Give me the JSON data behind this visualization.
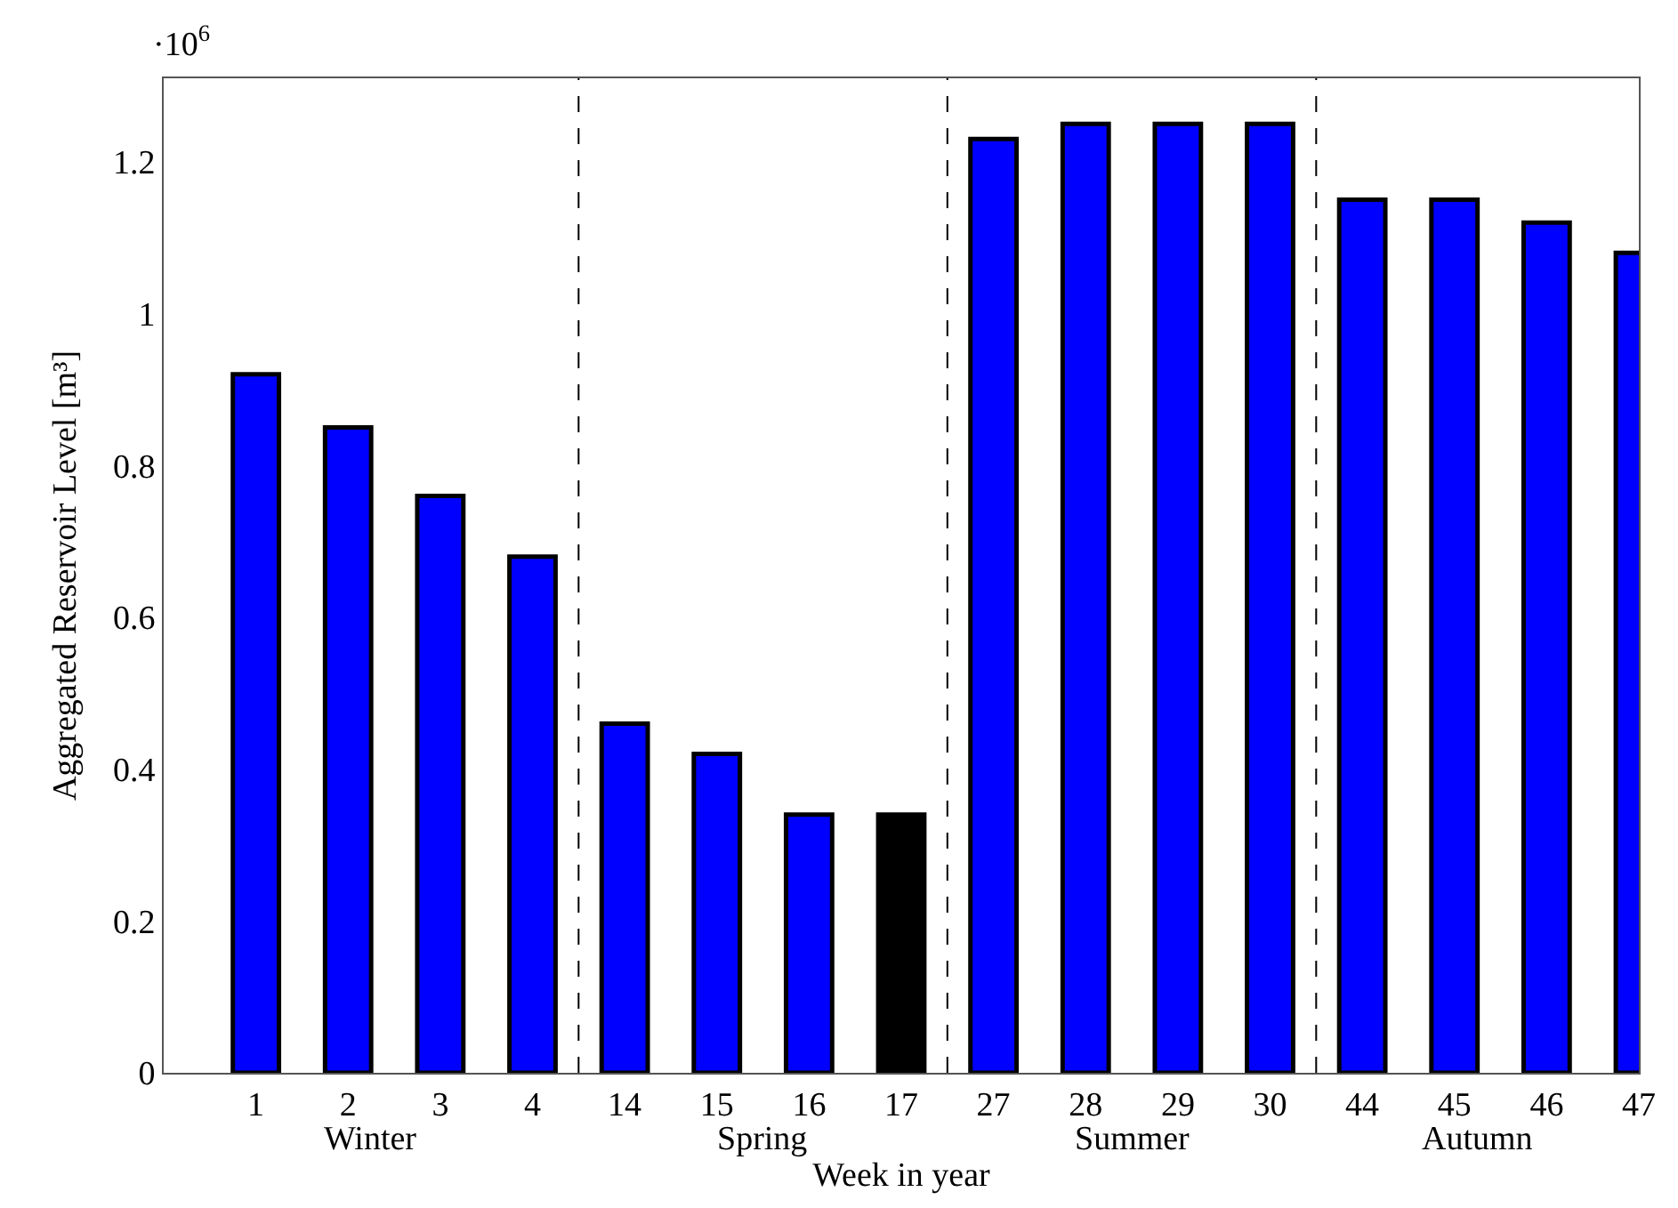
{
  "chart_data": {
    "type": "bar",
    "categories": [
      "1",
      "2",
      "3",
      "4",
      "14",
      "15",
      "16",
      "17",
      "27",
      "28",
      "29",
      "30",
      "44",
      "45",
      "46",
      "47"
    ],
    "values": [
      0.92,
      0.85,
      0.76,
      0.68,
      0.46,
      0.42,
      0.34,
      0.34,
      1.23,
      1.25,
      1.25,
      1.25,
      1.15,
      1.15,
      1.12,
      1.08
    ],
    "colors": [
      "#0000ff",
      "#0000ff",
      "#0000ff",
      "#0000ff",
      "#0000ff",
      "#0000ff",
      "#0000ff",
      "#000000",
      "#0000ff",
      "#0000ff",
      "#0000ff",
      "#0000ff",
      "#0000ff",
      "#0000ff",
      "#0000ff",
      "#0000ff"
    ],
    "ylim": [
      0,
      1.31
    ],
    "yticks": [
      0,
      0.2,
      0.4,
      0.6,
      0.8,
      1,
      1.2
    ],
    "xlabel": "Week in year",
    "ylabel": "Aggregated Reservoir Level [m³]",
    "annotations": [
      "·10$^{6}$",
      "Winter",
      "Spring",
      "Summer",
      "Autumn"
    ]
  }
}
